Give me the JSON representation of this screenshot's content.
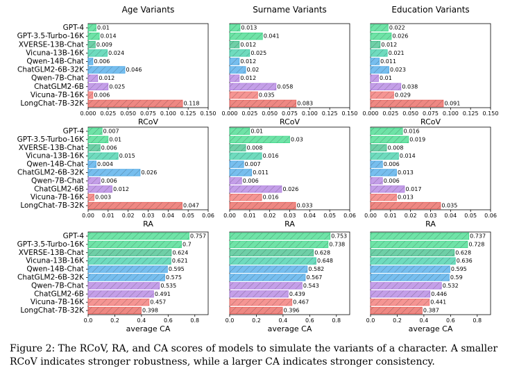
{
  "models": [
    "GPT-4",
    "GPT-3.5-Turbo-16K",
    "XVERSE-13B-Chat",
    "Vicuna-13B-16K",
    "Qwen-14B-Chat",
    "ChatGLM2-6B-32K",
    "Qwen-7B-Chat",
    "ChatGLM2-6B",
    "Vicuna-7B-16K",
    "LongChat-7B-32K"
  ],
  "colors": [
    "#3fd98a",
    "#3fd98a",
    "#3fbf8a",
    "#3fcfa8",
    "#4aa8e8",
    "#4aa8e8",
    "#b07fe0",
    "#b07fe0",
    "#f2726f",
    "#e8605a"
  ],
  "column_titles": [
    "Age Variants",
    "Surname Variants",
    "Education Variants"
  ],
  "chart_data": [
    {
      "type": "bar",
      "orientation": "horizontal",
      "metric": "RCoV",
      "xlabel": "RCoV",
      "xlim": [
        0,
        0.15
      ],
      "xticks": [
        "0.000",
        "0.025",
        "0.050",
        "0.075",
        "0.100",
        "0.125",
        "0.150"
      ],
      "columns": [
        {
          "name": "Age Variants",
          "values": [
            0.01,
            0.014,
            0.009,
            0.024,
            0.006,
            0.046,
            0.012,
            0.025,
            0.006,
            0.118
          ]
        },
        {
          "name": "Surname Variants",
          "values": [
            0.013,
            0.041,
            0.012,
            0.025,
            0.012,
            0.02,
            0.012,
            0.058,
            0.035,
            0.083
          ]
        },
        {
          "name": "Education Variants",
          "values": [
            0.022,
            0.026,
            0.012,
            0.021,
            0.011,
            0.023,
            0.01,
            0.038,
            0.029,
            0.091
          ]
        }
      ]
    },
    {
      "type": "bar",
      "orientation": "horizontal",
      "metric": "RA",
      "xlabel": "RA",
      "xlim": [
        0,
        0.06
      ],
      "xticks": [
        "0.00",
        "0.01",
        "0.02",
        "0.03",
        "0.04",
        "0.05",
        "0.06"
      ],
      "columns": [
        {
          "name": "Age Variants",
          "values": [
            0.007,
            0.01,
            0.006,
            0.015,
            0.004,
            0.026,
            0.006,
            0.012,
            0.003,
            0.047
          ]
        },
        {
          "name": "Surname Variants",
          "values": [
            0.01,
            0.03,
            0.008,
            0.016,
            0.007,
            0.011,
            0.006,
            0.026,
            0.016,
            0.033
          ]
        },
        {
          "name": "Education Variants",
          "values": [
            0.016,
            0.019,
            0.008,
            0.014,
            0.006,
            0.013,
            0.006,
            0.017,
            0.013,
            0.035
          ]
        }
      ]
    },
    {
      "type": "bar",
      "orientation": "horizontal",
      "metric": "CA",
      "xlabel": "average CA",
      "xlim": [
        0,
        0.9
      ],
      "xticks": [
        "0.0",
        "0.2",
        "0.4",
        "0.6",
        "0.8"
      ],
      "columns": [
        {
          "name": "Age Variants",
          "values": [
            0.757,
            0.7,
            0.624,
            0.621,
            0.595,
            0.575,
            0.535,
            0.491,
            0.457,
            0.398
          ]
        },
        {
          "name": "Surname Variants",
          "values": [
            0.753,
            0.738,
            0.628,
            0.648,
            0.582,
            0.567,
            0.543,
            0.439,
            0.467,
            0.396
          ]
        },
        {
          "name": "Education Variants",
          "values": [
            0.737,
            0.728,
            0.628,
            0.636,
            0.595,
            0.59,
            0.532,
            0.446,
            0.441,
            0.387
          ]
        }
      ]
    }
  ],
  "caption": "Figure 2: The RCoV, RA, and CA scores of models to simulate the variants of a character. A smaller RCoV indicates stronger robustness, while a larger CA indicates stronger consistency."
}
